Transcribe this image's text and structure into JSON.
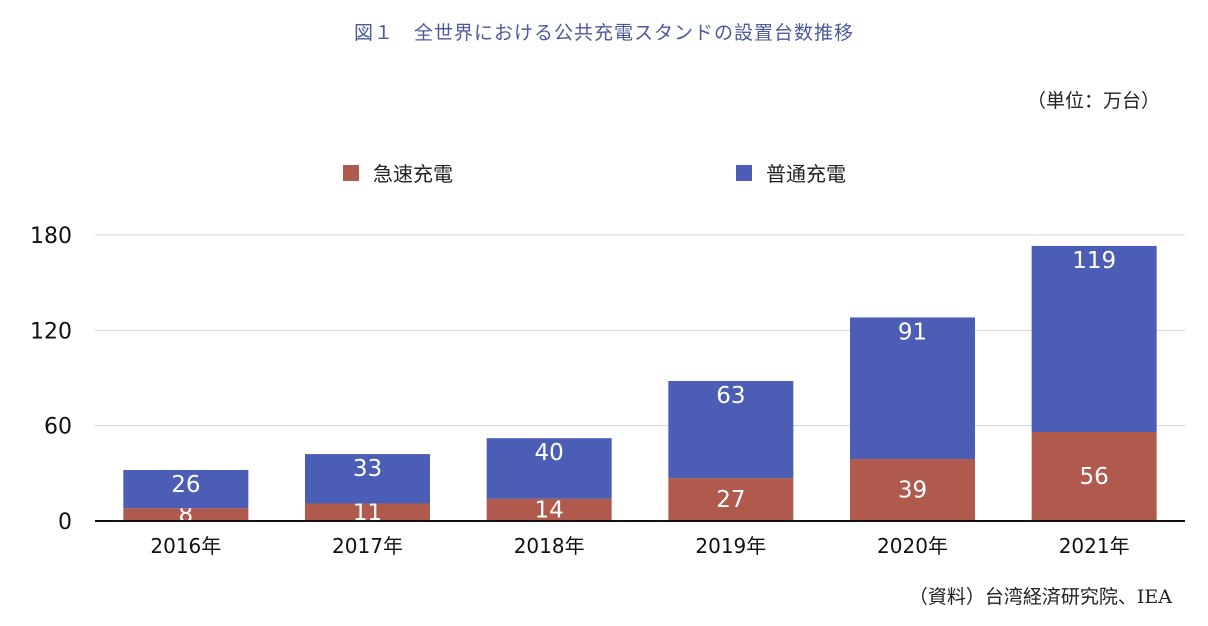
{
  "header": {
    "title": "図１　全世界における公共充電スタンドの設置台数推移",
    "unit": "（単位：万台）"
  },
  "footer": {
    "source": "（資料）台湾経済研究院、IEA"
  },
  "legend": {
    "items": [
      {
        "label": "急速充電",
        "color": "#b05a4e"
      },
      {
        "label": "普通充電",
        "color": "#4b5db5"
      }
    ]
  },
  "chart_data": {
    "type": "bar",
    "stacked": true,
    "title": "図１　全世界における公共充電スタンドの設置台数推移",
    "categories": [
      "2016年",
      "2017年",
      "2018年",
      "2019年",
      "2020年",
      "2021年"
    ],
    "series": [
      {
        "name": "急速充電",
        "values": [
          8,
          11,
          14,
          27,
          39,
          56
        ],
        "color": "#b05a4e"
      },
      {
        "name": "普通充電",
        "values": [
          26,
          33,
          40,
          63,
          91,
          119
        ],
        "color": "#4b5db5"
      }
    ],
    "ylim": [
      0,
      180
    ],
    "yticks": [
      0,
      60,
      120,
      180
    ],
    "grid": true,
    "legend_position": "top",
    "xlabel": "",
    "ylabel": ""
  }
}
